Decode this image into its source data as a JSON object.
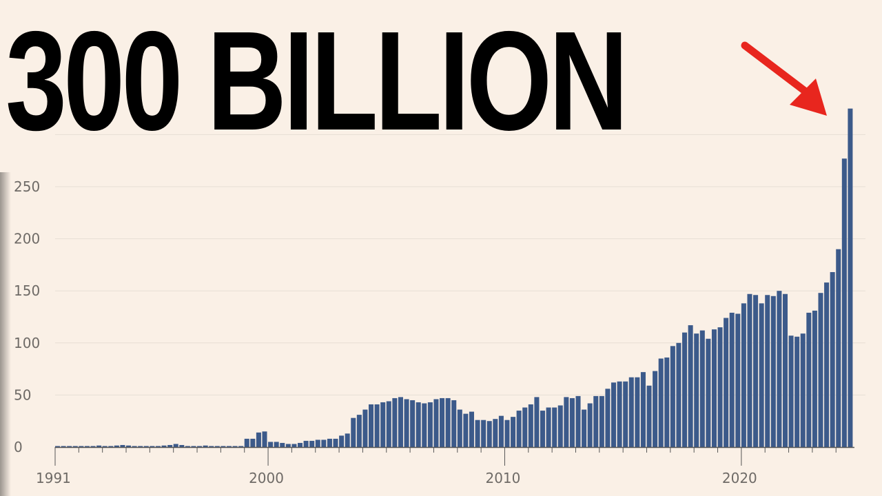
{
  "headline": "300 BILLION",
  "colors": {
    "background": "#FAF0E6",
    "bar": "#3C5A8A",
    "arrow": "#E8261E",
    "text": "#000000"
  },
  "chart_data": {
    "type": "bar",
    "title": "300 BILLION",
    "xlabel": "",
    "ylabel": "",
    "ylim": [
      0,
      300
    ],
    "yticks": [
      0,
      50,
      100,
      150,
      200,
      250
    ],
    "xtick_labels": [
      "1991",
      "2000",
      "2010",
      "2020"
    ],
    "x_start": 1991,
    "x_end": 2024.75,
    "bar_step": 0.25,
    "annotation": "red arrow pointing at the final bar",
    "values": [
      1,
      1,
      1,
      1,
      1,
      1,
      1,
      1.5,
      1,
      1,
      1.5,
      2,
      1.5,
      1,
      1,
      1,
      1,
      1,
      1.5,
      2,
      3,
      2,
      1,
      1,
      1,
      1.5,
      1,
      1,
      1,
      1,
      1,
      1,
      8,
      8,
      14,
      15,
      5,
      5,
      4,
      3,
      3,
      4,
      6,
      6,
      7,
      7,
      8,
      8,
      11,
      13,
      28,
      31,
      36,
      41,
      41,
      43,
      44,
      47,
      48,
      46,
      45,
      43,
      42,
      43,
      46,
      47,
      47,
      45,
      36,
      32,
      34,
      26,
      26,
      25,
      27,
      30,
      26,
      29,
      35,
      38,
      41,
      48,
      35,
      38,
      38,
      40,
      48,
      47,
      49,
      36,
      42,
      49,
      49,
      56,
      62,
      63,
      63,
      67,
      67,
      72,
      59,
      73,
      85,
      86,
      97,
      100,
      110,
      117,
      109,
      112,
      104,
      113,
      115,
      124,
      129,
      128,
      138,
      147,
      146,
      138,
      146,
      145,
      150,
      147,
      107,
      106,
      109,
      129,
      131,
      148,
      158,
      168,
      190,
      277,
      325
    ]
  }
}
